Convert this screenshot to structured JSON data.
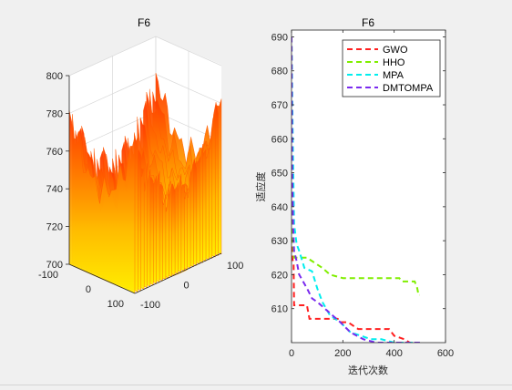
{
  "figure_background": "#f0f0f0",
  "chart_data": [
    {
      "type": "surface3d",
      "title": "F6",
      "zlim": [
        700,
        800
      ],
      "z_ticks": [
        "700",
        "720",
        "740",
        "760",
        "780",
        "800"
      ],
      "x_ticks": [
        "-100",
        "0",
        "100"
      ],
      "y_ticks": [
        "-100",
        "0",
        "100"
      ],
      "colormap": [
        "#ff3300",
        "#ff6600",
        "#ff9900",
        "#ffcc00",
        "#ffee00"
      ],
      "contour_color": "#e85050",
      "floor_color": "#ffb830"
    },
    {
      "type": "line",
      "title": "F6",
      "xlabel": "迭代次数",
      "ylabel": "适应度",
      "xlim": [
        0,
        600
      ],
      "ylim": [
        600,
        692
      ],
      "x_ticks": [
        "0",
        "200",
        "400",
        "600"
      ],
      "y_ticks": [
        "610",
        "620",
        "630",
        "640",
        "650",
        "660",
        "670",
        "680",
        "690"
      ],
      "legend_position": "top-right",
      "series": [
        {
          "name": "GWO",
          "color": "#ff2020",
          "x": [
            0,
            2,
            3,
            8,
            10,
            20,
            60,
            70,
            90,
            140,
            180,
            190,
            220,
            260,
            290,
            320,
            340,
            380,
            400,
            440,
            460,
            500
          ],
          "y": [
            690,
            645,
            625,
            623,
            611,
            611,
            611,
            607,
            607,
            607,
            607,
            606,
            606,
            604,
            604,
            604,
            604,
            604,
            602,
            601,
            600,
            600
          ]
        },
        {
          "name": "HHO",
          "color": "#80ee00",
          "x": [
            0,
            2,
            5,
            10,
            15,
            25,
            60,
            80,
            120,
            150,
            200,
            250,
            300,
            350,
            400,
            420,
            430,
            440,
            450,
            460,
            480,
            490,
            495,
            500
          ],
          "y": [
            690,
            650,
            630,
            625,
            625,
            625,
            625,
            624,
            622,
            620,
            619,
            619,
            619,
            619,
            619,
            619,
            618,
            618,
            618,
            618,
            618,
            616,
            614,
            614
          ]
        },
        {
          "name": "MPA",
          "color": "#00eeee",
          "x": [
            0,
            5,
            10,
            20,
            30,
            50,
            80,
            100,
            120,
            150,
            190,
            230,
            270,
            310,
            350,
            400,
            450,
            500
          ],
          "y": [
            690,
            660,
            635,
            629,
            627,
            622,
            621,
            616,
            612,
            608,
            606,
            603,
            602,
            601,
            601,
            600,
            600,
            600
          ]
        },
        {
          "name": "DMTOMPA",
          "color": "#7a2bee",
          "x": [
            0,
            3,
            6,
            10,
            20,
            30,
            60,
            80,
            100,
            130,
            160,
            190,
            230,
            280,
            330,
            380,
            450,
            500
          ],
          "y": [
            690,
            648,
            635,
            627,
            624,
            620,
            616,
            613,
            612,
            610,
            608,
            606,
            603,
            601,
            600,
            600,
            600,
            600
          ]
        }
      ]
    }
  ]
}
